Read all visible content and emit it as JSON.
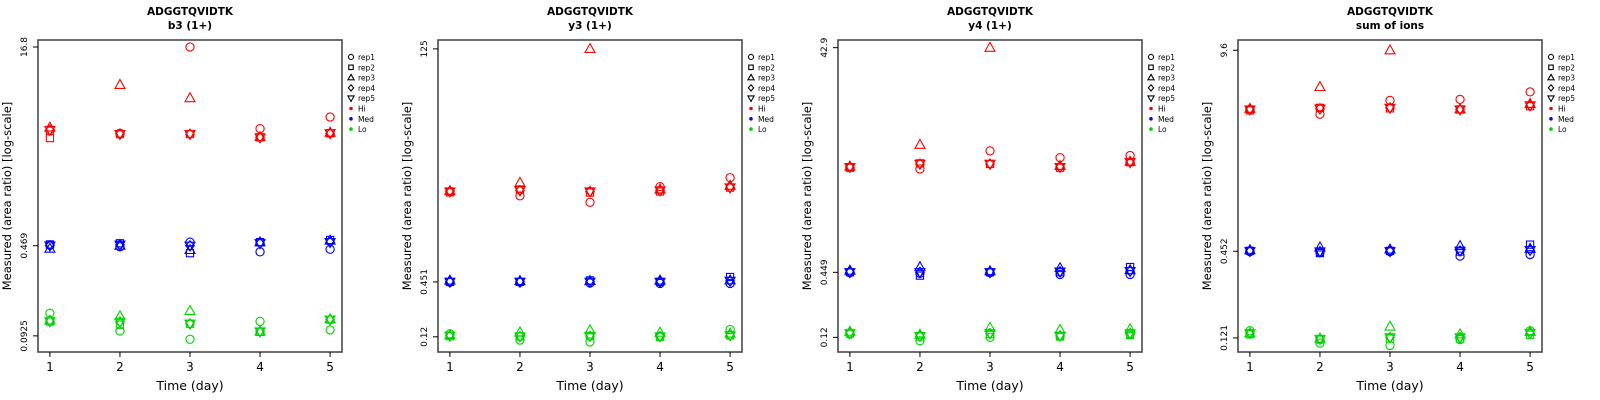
{
  "figure": {
    "y_axis_label": "Measured (area ratio) [log-scale]",
    "x_axis_label": "Time (day)",
    "x_ticks": [
      "1",
      "2",
      "3",
      "4",
      "5"
    ],
    "legend": {
      "replicates": [
        {
          "label": "rep1",
          "marker": "circle"
        },
        {
          "label": "rep2",
          "marker": "square"
        },
        {
          "label": "rep3",
          "marker": "triangle-up"
        },
        {
          "label": "rep4",
          "marker": "diamond"
        },
        {
          "label": "rep5",
          "marker": "triangle-down"
        }
      ],
      "levels": [
        {
          "label": "Hi",
          "color": "#FF0000"
        },
        {
          "label": "Med",
          "color": "#0000FF"
        },
        {
          "label": "Lo",
          "color": "#00D500"
        }
      ]
    }
  },
  "chart_data": [
    {
      "type": "scatter",
      "title": "ADGGTQVIDTK",
      "subtitle": "b3 (1+)",
      "xlabel": "Time (day)",
      "ylabel": "Measured (area ratio) [log-scale]",
      "x": [
        1,
        2,
        3,
        4,
        5
      ],
      "y_scale": "log10",
      "grid": false,
      "legend_position": "right-outside",
      "y_ticks": [
        {
          "label": "16.8",
          "value": 16.8
        },
        {
          "label": "0.469",
          "value": 0.469
        },
        {
          "label": "0.0925",
          "value": 0.0925
        }
      ],
      "ylim_log": [
        -1.16,
        1.28
      ],
      "series": [
        {
          "level": "Hi",
          "rep": "rep1",
          "marker": "circle",
          "values": [
            3.7,
            3.55,
            16.8,
            3.86,
            4.76
          ]
        },
        {
          "level": "Hi",
          "rep": "rep2",
          "marker": "square",
          "values": [
            3.26,
            3.5,
            3.5,
            3.3,
            3.55
          ]
        },
        {
          "level": "Hi",
          "rep": "rep3",
          "marker": "triangle-up",
          "values": [
            3.95,
            8.5,
            6.7,
            3.32,
            3.6
          ]
        },
        {
          "level": "Hi",
          "rep": "rep4",
          "marker": "diamond",
          "values": [
            3.77,
            3.5,
            3.5,
            3.3,
            3.55
          ]
        },
        {
          "level": "Hi",
          "rep": "rep5",
          "marker": "triangle-down",
          "values": [
            3.77,
            3.5,
            3.5,
            3.3,
            3.55
          ]
        },
        {
          "level": "Med",
          "rep": "rep1",
          "marker": "circle",
          "values": [
            0.475,
            0.46,
            0.5,
            0.42,
            0.44
          ]
        },
        {
          "level": "Med",
          "rep": "rep2",
          "marker": "square",
          "values": [
            0.48,
            0.49,
            0.41,
            0.5,
            0.52
          ]
        },
        {
          "level": "Med",
          "rep": "rep3",
          "marker": "triangle-up",
          "values": [
            0.445,
            0.47,
            0.435,
            0.5,
            0.515
          ]
        },
        {
          "level": "Med",
          "rep": "rep4",
          "marker": "diamond",
          "values": [
            0.47,
            0.477,
            0.469,
            0.49,
            0.5
          ]
        },
        {
          "level": "Med",
          "rep": "rep5",
          "marker": "triangle-down",
          "values": [
            0.47,
            0.477,
            0.469,
            0.49,
            0.5
          ]
        },
        {
          "level": "Lo",
          "rep": "rep1",
          "marker": "circle",
          "values": [
            0.139,
            0.101,
            0.087,
            0.12,
            0.103
          ]
        },
        {
          "level": "Lo",
          "rep": "rep2",
          "marker": "square",
          "values": [
            0.12,
            0.113,
            0.115,
            0.0995,
            0.124
          ]
        },
        {
          "level": "Lo",
          "rep": "rep3",
          "marker": "triangle-up",
          "values": [
            0.122,
            0.132,
            0.145,
            0.1,
            0.125
          ]
        },
        {
          "level": "Lo",
          "rep": "rep4",
          "marker": "diamond",
          "values": [
            0.12,
            0.119,
            0.115,
            0.1,
            0.124
          ]
        },
        {
          "level": "Lo",
          "rep": "rep5",
          "marker": "triangle-down",
          "values": [
            0.12,
            0.119,
            0.115,
            0.1,
            0.124
          ]
        }
      ]
    },
    {
      "type": "scatter",
      "title": "ADGGTQVIDTK",
      "subtitle": "y3 (1+)",
      "xlabel": "Time (day)",
      "ylabel": "Measured (area ratio) [log-scale]",
      "x": [
        1,
        2,
        3,
        4,
        5
      ],
      "y_scale": "log10",
      "grid": false,
      "legend_position": "right-outside",
      "y_ticks": [
        {
          "label": "125",
          "value": 125
        },
        {
          "label": "0.451",
          "value": 0.451
        },
        {
          "label": "0.12",
          "value": 0.12
        }
      ],
      "ylim_log": [
        -1.08,
        2.19
      ],
      "series": [
        {
          "level": "Hi",
          "rep": "rep1",
          "marker": "circle",
          "values": [
            4.0,
            3.6,
            3.08,
            4.5,
            5.58
          ]
        },
        {
          "level": "Hi",
          "rep": "rep2",
          "marker": "square",
          "values": [
            3.92,
            4.2,
            3.9,
            4.0,
            4.4
          ]
        },
        {
          "level": "Hi",
          "rep": "rep3",
          "marker": "triangle-up",
          "values": [
            4.05,
            4.95,
            125,
            4.2,
            4.6
          ]
        },
        {
          "level": "Hi",
          "rep": "rep4",
          "marker": "diamond",
          "values": [
            4.0,
            4.1,
            4.0,
            4.1,
            4.4
          ]
        },
        {
          "level": "Hi",
          "rep": "rep5",
          "marker": "triangle-down",
          "values": [
            4.0,
            4.1,
            4.0,
            4.1,
            4.4
          ]
        },
        {
          "level": "Med",
          "rep": "rep1",
          "marker": "circle",
          "values": [
            0.448,
            0.448,
            0.44,
            0.435,
            0.435
          ]
        },
        {
          "level": "Med",
          "rep": "rep2",
          "marker": "square",
          "values": [
            0.452,
            0.452,
            0.468,
            0.452,
            0.508
          ]
        },
        {
          "level": "Med",
          "rep": "rep3",
          "marker": "triangle-up",
          "values": [
            0.468,
            0.462,
            0.462,
            0.468,
            0.47
          ]
        },
        {
          "level": "Med",
          "rep": "rep4",
          "marker": "diamond",
          "values": [
            0.452,
            0.452,
            0.452,
            0.452,
            0.462
          ]
        },
        {
          "level": "Med",
          "rep": "rep5",
          "marker": "triangle-down",
          "values": [
            0.452,
            0.452,
            0.452,
            0.452,
            0.462
          ]
        },
        {
          "level": "Lo",
          "rep": "rep1",
          "marker": "circle",
          "values": [
            0.129,
            0.111,
            0.106,
            0.122,
            0.143
          ]
        },
        {
          "level": "Lo",
          "rep": "rep2",
          "marker": "square",
          "values": [
            0.122,
            0.121,
            0.122,
            0.12,
            0.124
          ]
        },
        {
          "level": "Lo",
          "rep": "rep3",
          "marker": "triangle-up",
          "values": [
            0.125,
            0.134,
            0.141,
            0.133,
            0.13
          ]
        },
        {
          "level": "Lo",
          "rep": "rep4",
          "marker": "diamond",
          "values": [
            0.123,
            0.121,
            0.122,
            0.121,
            0.124
          ]
        },
        {
          "level": "Lo",
          "rep": "rep5",
          "marker": "triangle-down",
          "values": [
            0.123,
            0.121,
            0.122,
            0.121,
            0.124
          ]
        }
      ]
    },
    {
      "type": "scatter",
      "title": "ADGGTQVIDTK",
      "subtitle": "y4 (1+)",
      "xlabel": "Time (day)",
      "ylabel": "Measured (area ratio) [log-scale]",
      "x": [
        1,
        2,
        3,
        4,
        5
      ],
      "y_scale": "log10",
      "grid": false,
      "legend_position": "right-outside",
      "y_ticks": [
        {
          "label": "42.9",
          "value": 42.9
        },
        {
          "label": "0.449",
          "value": 0.449
        },
        {
          "label": "0.12",
          "value": 0.12
        }
      ],
      "ylim_log": [
        -1.05,
        1.7
      ],
      "series": [
        {
          "level": "Hi",
          "rep": "rep1",
          "marker": "circle",
          "values": [
            3.8,
            3.66,
            5.28,
            4.6,
            4.8
          ]
        },
        {
          "level": "Hi",
          "rep": "rep2",
          "marker": "square",
          "values": [
            3.75,
            4.1,
            4.05,
            3.75,
            4.2
          ]
        },
        {
          "level": "Hi",
          "rep": "rep3",
          "marker": "triangle-up",
          "values": [
            3.85,
            5.98,
            42.9,
            3.9,
            4.25
          ]
        },
        {
          "level": "Hi",
          "rep": "rep4",
          "marker": "diamond",
          "values": [
            3.8,
            4.05,
            4.05,
            3.8,
            4.2
          ]
        },
        {
          "level": "Hi",
          "rep": "rep5",
          "marker": "triangle-down",
          "values": [
            3.8,
            4.05,
            4.05,
            3.8,
            4.2
          ]
        },
        {
          "level": "Med",
          "rep": "rep1",
          "marker": "circle",
          "values": [
            0.445,
            0.44,
            0.445,
            0.43,
            0.43
          ]
        },
        {
          "level": "Med",
          "rep": "rep2",
          "marker": "square",
          "values": [
            0.45,
            0.42,
            0.45,
            0.45,
            0.5
          ]
        },
        {
          "level": "Med",
          "rep": "rep3",
          "marker": "triangle-up",
          "values": [
            0.465,
            0.5,
            0.46,
            0.49,
            0.47
          ]
        },
        {
          "level": "Med",
          "rep": "rep4",
          "marker": "diamond",
          "values": [
            0.45,
            0.45,
            0.449,
            0.455,
            0.46
          ]
        },
        {
          "level": "Med",
          "rep": "rep5",
          "marker": "triangle-down",
          "values": [
            0.45,
            0.45,
            0.449,
            0.455,
            0.46
          ]
        },
        {
          "level": "Lo",
          "rep": "rep1",
          "marker": "circle",
          "values": [
            0.128,
            0.112,
            0.12,
            0.123,
            0.128
          ]
        },
        {
          "level": "Lo",
          "rep": "rep2",
          "marker": "square",
          "values": [
            0.13,
            0.122,
            0.128,
            0.122,
            0.126
          ]
        },
        {
          "level": "Lo",
          "rep": "rep3",
          "marker": "triangle-up",
          "values": [
            0.135,
            0.127,
            0.146,
            0.14,
            0.142
          ]
        },
        {
          "level": "Lo",
          "rep": "rep4",
          "marker": "diamond",
          "values": [
            0.13,
            0.123,
            0.13,
            0.124,
            0.13
          ]
        },
        {
          "level": "Lo",
          "rep": "rep5",
          "marker": "triangle-down",
          "values": [
            0.13,
            0.123,
            0.13,
            0.124,
            0.13
          ]
        }
      ]
    },
    {
      "type": "scatter",
      "title": "ADGGTQVIDTK",
      "subtitle": "sum of ions",
      "xlabel": "Time (day)",
      "ylabel": "Measured (area ratio) [log-scale]",
      "x": [
        1,
        2,
        3,
        4,
        5
      ],
      "y_scale": "log10",
      "grid": false,
      "legend_position": "right-outside",
      "y_ticks": [
        {
          "label": "9.6",
          "value": 9.6
        },
        {
          "label": "0.452",
          "value": 0.452
        },
        {
          "label": "0.121",
          "value": 0.121
        }
      ],
      "ylim_log": [
        -1.01,
        1.05
      ],
      "series": [
        {
          "level": "Hi",
          "rep": "rep1",
          "marker": "circle",
          "values": [
            3.9,
            3.63,
            4.48,
            4.55,
            5.1
          ]
        },
        {
          "level": "Hi",
          "rep": "rep2",
          "marker": "square",
          "values": [
            3.85,
            4.0,
            3.97,
            3.9,
            4.1
          ]
        },
        {
          "level": "Hi",
          "rep": "rep3",
          "marker": "triangle-up",
          "values": [
            3.95,
            5.5,
            9.6,
            3.92,
            4.25
          ]
        },
        {
          "level": "Hi",
          "rep": "rep4",
          "marker": "diamond",
          "values": [
            3.9,
            3.95,
            4.0,
            3.9,
            4.15
          ]
        },
        {
          "level": "Hi",
          "rep": "rep5",
          "marker": "triangle-down",
          "values": [
            3.9,
            3.95,
            4.0,
            3.9,
            4.15
          ]
        },
        {
          "level": "Med",
          "rep": "rep1",
          "marker": "circle",
          "values": [
            0.45,
            0.445,
            0.45,
            0.42,
            0.43
          ]
        },
        {
          "level": "Med",
          "rep": "rep2",
          "marker": "square",
          "values": [
            0.455,
            0.44,
            0.455,
            0.45,
            0.5
          ]
        },
        {
          "level": "Med",
          "rep": "rep3",
          "marker": "triangle-up",
          "values": [
            0.46,
            0.48,
            0.465,
            0.49,
            0.47
          ]
        },
        {
          "level": "Med",
          "rep": "rep4",
          "marker": "diamond",
          "values": [
            0.452,
            0.45,
            0.452,
            0.455,
            0.46
          ]
        },
        {
          "level": "Med",
          "rep": "rep5",
          "marker": "triangle-down",
          "values": [
            0.452,
            0.45,
            0.452,
            0.455,
            0.46
          ]
        },
        {
          "level": "Lo",
          "rep": "rep1",
          "marker": "circle",
          "values": [
            0.135,
            0.112,
            0.108,
            0.118,
            0.135
          ]
        },
        {
          "level": "Lo",
          "rep": "rep2",
          "marker": "square",
          "values": [
            0.128,
            0.118,
            0.12,
            0.12,
            0.127
          ]
        },
        {
          "level": "Lo",
          "rep": "rep3",
          "marker": "triangle-up",
          "values": [
            0.13,
            0.12,
            0.144,
            0.128,
            0.133
          ]
        },
        {
          "level": "Lo",
          "rep": "rep4",
          "marker": "diamond",
          "values": [
            0.13,
            0.119,
            0.122,
            0.122,
            0.13
          ]
        },
        {
          "level": "Lo",
          "rep": "rep5",
          "marker": "triangle-down",
          "values": [
            0.13,
            0.119,
            0.122,
            0.122,
            0.13
          ]
        }
      ]
    }
  ]
}
